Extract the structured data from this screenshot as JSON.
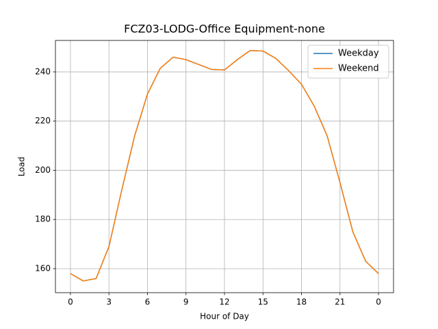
{
  "chart_data": {
    "type": "line",
    "title": "FCZ03-LODG-Office Equipment-none",
    "x_label": "Hour of Day",
    "y_label": "Load",
    "x": [
      0,
      1,
      2,
      3,
      4,
      5,
      6,
      7,
      8,
      9,
      10,
      11,
      12,
      13,
      14,
      15,
      16,
      17,
      18,
      19,
      20,
      21,
      22,
      23,
      24
    ],
    "series": [
      {
        "name": "Weekday",
        "color": "#1f77b4",
        "values": [
          158,
          155,
          156,
          169,
          192,
          214,
          231,
          241.5,
          246,
          245,
          243,
          241,
          240.8,
          245,
          248.7,
          248.5,
          245.5,
          240.5,
          235,
          226,
          214,
          195,
          175,
          163,
          158
        ]
      },
      {
        "name": "Weekend",
        "color": "#ff7f0e",
        "values": [
          158,
          155,
          156,
          169,
          192,
          214,
          231,
          241.5,
          246,
          245,
          243,
          241,
          240.8,
          245,
          248.7,
          248.5,
          245.5,
          240.5,
          235,
          226,
          214,
          195,
          175,
          163,
          158
        ]
      }
    ],
    "xlim": [
      -1.17,
      25.17
    ],
    "ylim": [
      150.24,
      252.8
    ],
    "xticks": [
      0,
      3,
      6,
      9,
      12,
      15,
      18,
      21,
      {
        "value": 24,
        "label": "0"
      }
    ],
    "yticks": [
      160,
      180,
      200,
      220,
      240
    ],
    "grid": true,
    "legend": "upper right"
  }
}
